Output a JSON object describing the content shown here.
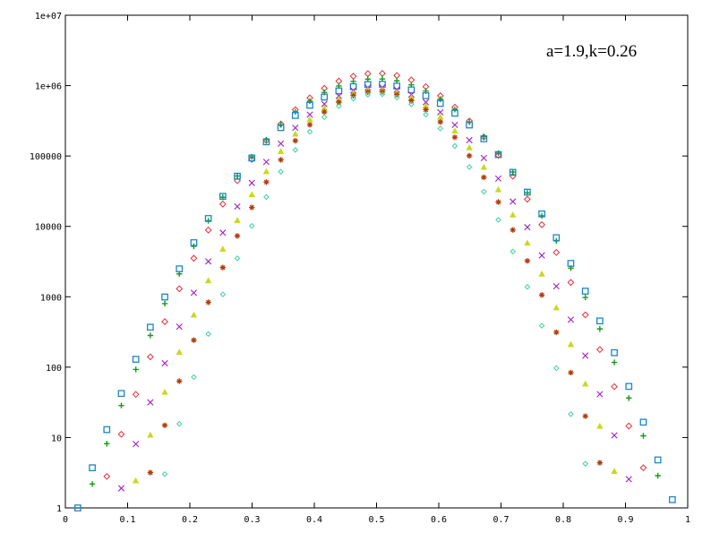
{
  "chart_data": {
    "type": "scatter",
    "title": "",
    "xlabel": "",
    "ylabel": "",
    "annotation": "a=1.9,k=0.26",
    "xlim": [
      0,
      1
    ],
    "ylim": [
      1,
      10000000
    ],
    "yscale": "log",
    "grid": false,
    "legend": "none",
    "x_ticks": [
      "0",
      "0.1",
      "0.2",
      "0.3",
      "0.4",
      "0.5",
      "0.6",
      "0.7",
      "0.8",
      "0.9",
      "1"
    ],
    "y_ticks": [
      "1",
      "10",
      "100",
      "1000",
      "10000",
      "100000",
      "1e+06",
      "1e+07"
    ],
    "series": [
      {
        "marker": "diamond",
        "color": "#e0303a",
        "peak": 1500000,
        "width": 0.45
      },
      {
        "marker": "plus",
        "color": "#1a9a1a",
        "peak": 1250000,
        "width": 0.47
      },
      {
        "marker": "square",
        "color": "#1a86c8",
        "peak": 1050000,
        "width": 0.48
      },
      {
        "marker": "cross",
        "color": "#a020c0",
        "peak": 950000,
        "width": 0.42
      },
      {
        "marker": "triangle",
        "color": "#c8d820",
        "peak": 880000,
        "width": 0.4
      },
      {
        "marker": "asterisk",
        "color": "#b03c0c",
        "peak": 820000,
        "width": 0.38
      },
      {
        "marker": "diamond-small",
        "color": "#40d0a0",
        "peak": 760000,
        "width": 0.355
      }
    ]
  }
}
